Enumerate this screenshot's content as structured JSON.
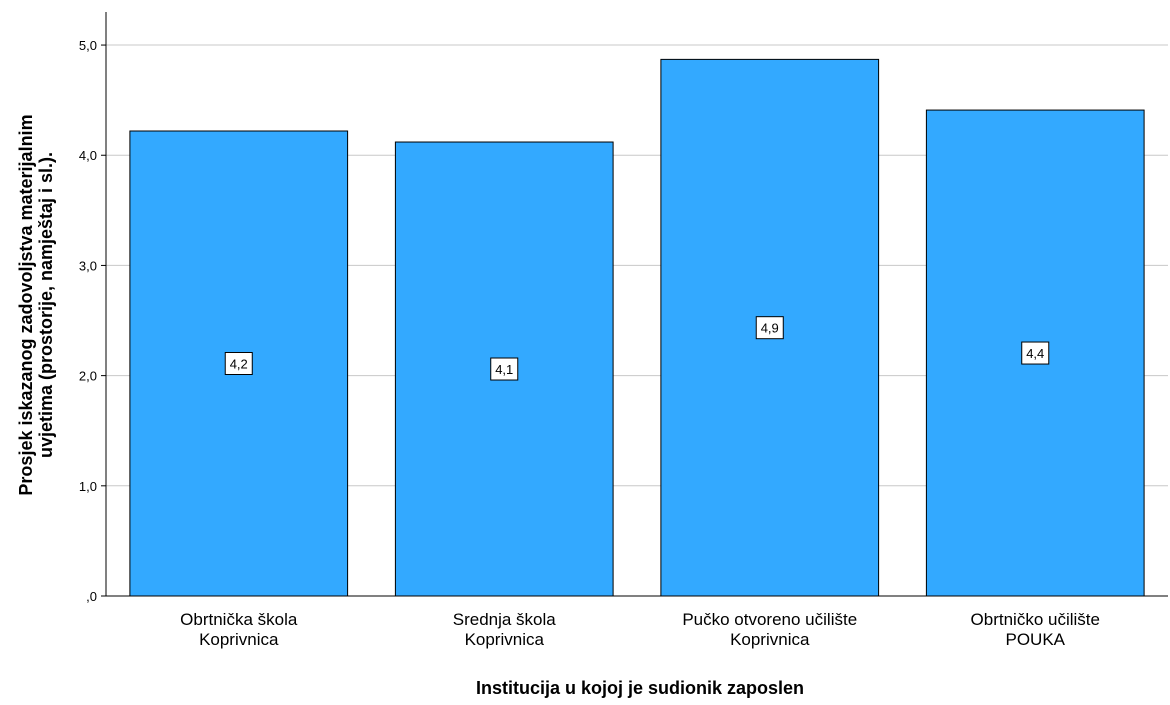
{
  "chart_data": {
    "type": "bar",
    "title": "",
    "xlabel": "Institucija u kojoj je sudionik zaposlen",
    "ylabel_lines": [
      "Prosjek iskazanog zadovoljstva materijalnim",
      "uvjetima (prostorije, namještaj i sl.)."
    ],
    "categories": [
      [
        "Obrtnička škola",
        "Koprivnica"
      ],
      [
        "Srednja škola",
        "Koprivnica"
      ],
      [
        "Pučko otvoreno učilište",
        "Koprivnica"
      ],
      [
        "Obrtničko učilište",
        "POUKA"
      ]
    ],
    "values": [
      4.22,
      4.12,
      4.87,
      4.41
    ],
    "value_labels": [
      "4,2",
      "4,1",
      "4,9",
      "4,4"
    ],
    "ylim": [
      0,
      5.3
    ],
    "yticks": [
      0,
      1,
      2,
      3,
      4,
      5
    ],
    "ytick_labels": [
      ",0",
      "1,0",
      "2,0",
      "3,0",
      "4,0",
      "5,0"
    ],
    "grid": true,
    "colors": {
      "bar_fill": "#33A9FF",
      "bar_stroke": "#000000",
      "grid": "#C8C8C8",
      "axis": "#000000",
      "label_box_fill": "#FFFFFF"
    }
  }
}
